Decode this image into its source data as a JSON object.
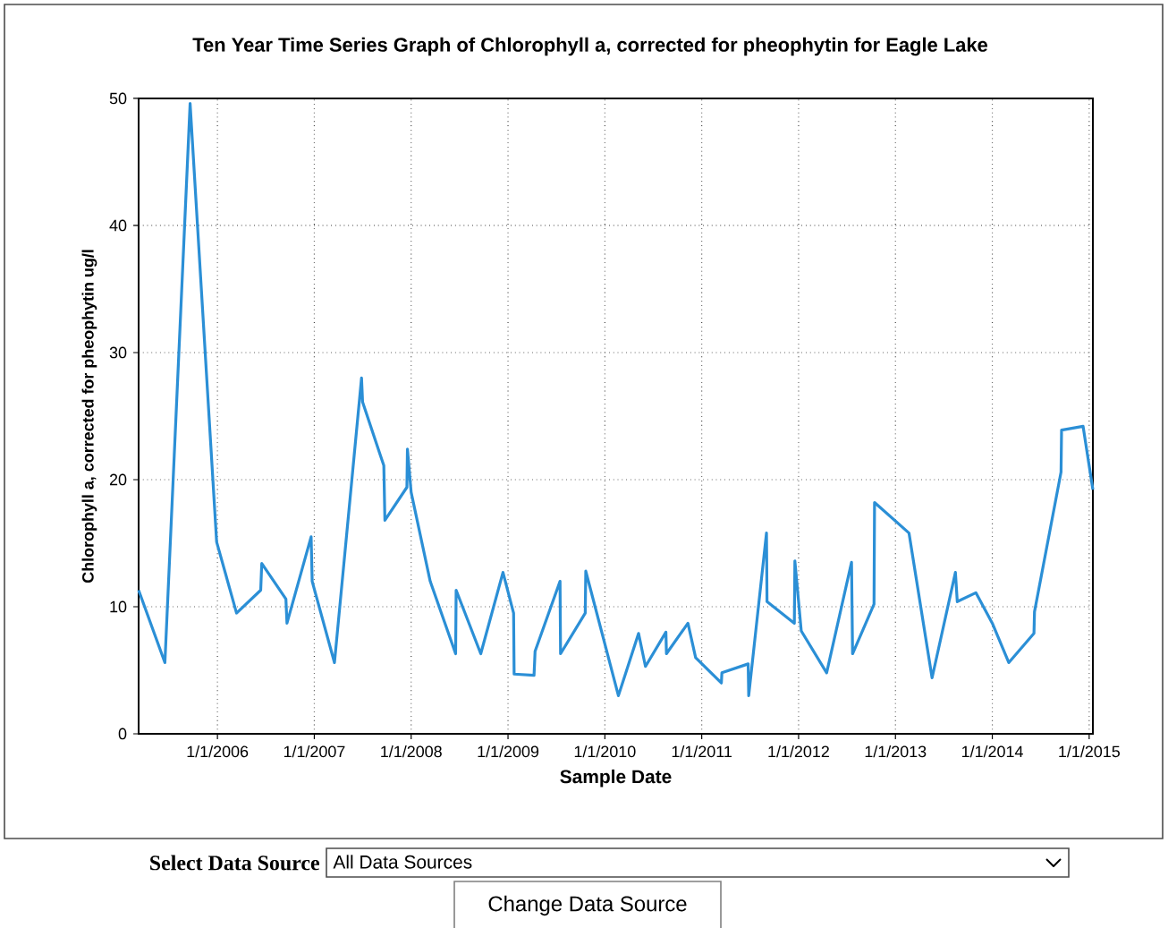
{
  "chart_data": {
    "type": "line",
    "title": "Ten Year Time Series Graph of Chlorophyll a, corrected for pheophytin for Eagle Lake",
    "xlabel": "Sample Date",
    "ylabel": "Chlorophyll a, corrected for pheophytin ug/l",
    "x": [
      "2005-03-10",
      "2005-06-17",
      "2005-09-20",
      "2005-12-29",
      "2006-03-14",
      "2006-06-13",
      "2006-06-17",
      "2006-09-16",
      "2006-09-20",
      "2006-12-20",
      "2006-12-24",
      "2007-03-18",
      "2007-06-28",
      "2007-07-02",
      "2007-09-20",
      "2007-09-24",
      "2007-12-16",
      "2007-12-18",
      "2008-01-01",
      "2008-03-13",
      "2008-06-17",
      "2008-06-19",
      "2008-09-20",
      "2008-12-13",
      "2009-01-22",
      "2009-01-24",
      "2009-04-09",
      "2009-04-13",
      "2009-07-16",
      "2009-07-18",
      "2009-10-19",
      "2009-10-21",
      "2010-02-21",
      "2010-05-08",
      "2010-06-03",
      "2010-08-19",
      "2010-08-21",
      "2010-11-10",
      "2010-12-09",
      "2011-03-16",
      "2011-03-18",
      "2011-06-25",
      "2011-06-27",
      "2011-09-02",
      "2011-09-04",
      "2011-12-16",
      "2011-12-18",
      "2012-01-11",
      "2012-04-16",
      "2012-07-19",
      "2012-07-23",
      "2012-10-12",
      "2012-10-14",
      "2013-02-21",
      "2013-05-19",
      "2013-08-15",
      "2013-08-22",
      "2013-10-31",
      "2014-01-01",
      "2014-03-04",
      "2014-06-07",
      "2014-06-09",
      "2014-09-17",
      "2014-09-19",
      "2014-12-09",
      "2015-01-15"
    ],
    "series": [
      {
        "color": "#2b8fd6",
        "values": [
          11.3,
          5.6,
          49.6,
          15.1,
          9.5,
          11.3,
          13.4,
          10.6,
          8.7,
          15.5,
          12.0,
          5.6,
          28.0,
          26.1,
          21.1,
          16.8,
          19.4,
          22.4,
          19.0,
          12.0,
          6.3,
          11.3,
          6.3,
          12.7,
          9.5,
          4.7,
          4.6,
          6.5,
          12.0,
          6.3,
          9.5,
          12.8,
          3.0,
          7.9,
          5.3,
          8.0,
          6.3,
          8.7,
          6.0,
          4.0,
          4.8,
          5.5,
          3.0,
          15.8,
          10.4,
          8.7,
          13.6,
          8.1,
          4.8,
          13.5,
          6.3,
          10.2,
          18.2,
          15.8,
          4.4,
          12.7,
          10.4,
          11.1,
          8.7,
          5.6,
          7.9,
          9.6,
          20.6,
          23.9,
          24.2,
          19.2
        ]
      }
    ],
    "xlim": [
      "2005-03-10",
      "2015-01-15"
    ],
    "ylim": [
      0,
      50
    ],
    "xticks": [
      {
        "value": "2006-01-01",
        "label": "1/1/2006"
      },
      {
        "value": "2007-01-01",
        "label": "1/1/2007"
      },
      {
        "value": "2008-01-01",
        "label": "1/1/2008"
      },
      {
        "value": "2009-01-01",
        "label": "1/1/2009"
      },
      {
        "value": "2010-01-01",
        "label": "1/1/2010"
      },
      {
        "value": "2011-01-01",
        "label": "1/1/2011"
      },
      {
        "value": "2012-01-01",
        "label": "1/1/2012"
      },
      {
        "value": "2013-01-01",
        "label": "1/1/2013"
      },
      {
        "value": "2014-01-01",
        "label": "1/1/2014"
      },
      {
        "value": "2015-01-01",
        "label": "1/1/2015"
      }
    ],
    "yticks": [
      0,
      10,
      20,
      30,
      40,
      50
    ],
    "grid": true,
    "marker": "none",
    "line_style": "solid",
    "annotations": [
      "Select Data Source",
      "All Data Sources",
      "Change Data Source"
    ]
  }
}
